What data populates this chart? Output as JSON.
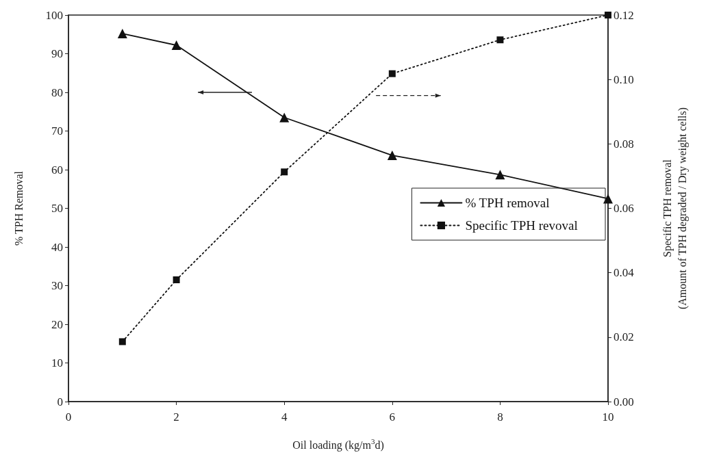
{
  "chart_data": {
    "type": "line",
    "xlabel": "Oil loading (kg/m$^{3}$d)",
    "ylabel": "% TPH Removal",
    "y2label": "Specific TPH removal\n(Amount of TPH degraded / Dry weight cells)",
    "x": [
      1,
      2,
      4,
      6,
      8,
      10
    ],
    "series": [
      {
        "name": "% TPH removal",
        "color": "#111111",
        "values": [
          95.2,
          92.2,
          73.5,
          63.7,
          58.7,
          52.5
        ],
        "marker": "triangle",
        "line_style": "solid"
      },
      {
        "name": "Specific TPH revoval",
        "color": "#111111",
        "values": [
          0.0186,
          0.0378,
          0.0713,
          0.1018,
          0.1123,
          0.12
        ],
        "axis": "y2",
        "marker": "square",
        "line_style": "dotted"
      }
    ],
    "xlim": [
      0,
      10
    ],
    "xticks": [
      0,
      2,
      4,
      6,
      8,
      10
    ],
    "ylim": [
      0,
      100
    ],
    "yticks": [
      0,
      10,
      20,
      30,
      40,
      50,
      60,
      70,
      80,
      90,
      100
    ],
    "y2lim": [
      0,
      0.12
    ],
    "y2ticks": [
      {
        "value": 0,
        "label": "0.00"
      },
      {
        "value": 0.02,
        "label": "0.02"
      },
      {
        "value": 0.04,
        "label": "0.04"
      },
      {
        "value": 0.06,
        "label": "0.06"
      },
      {
        "value": 0.08,
        "label": "0.08"
      },
      {
        "value": 0.1,
        "label": "0.10"
      },
      {
        "value": 0.12,
        "label": "0.12"
      }
    ],
    "grid": false,
    "legend": "right"
  }
}
